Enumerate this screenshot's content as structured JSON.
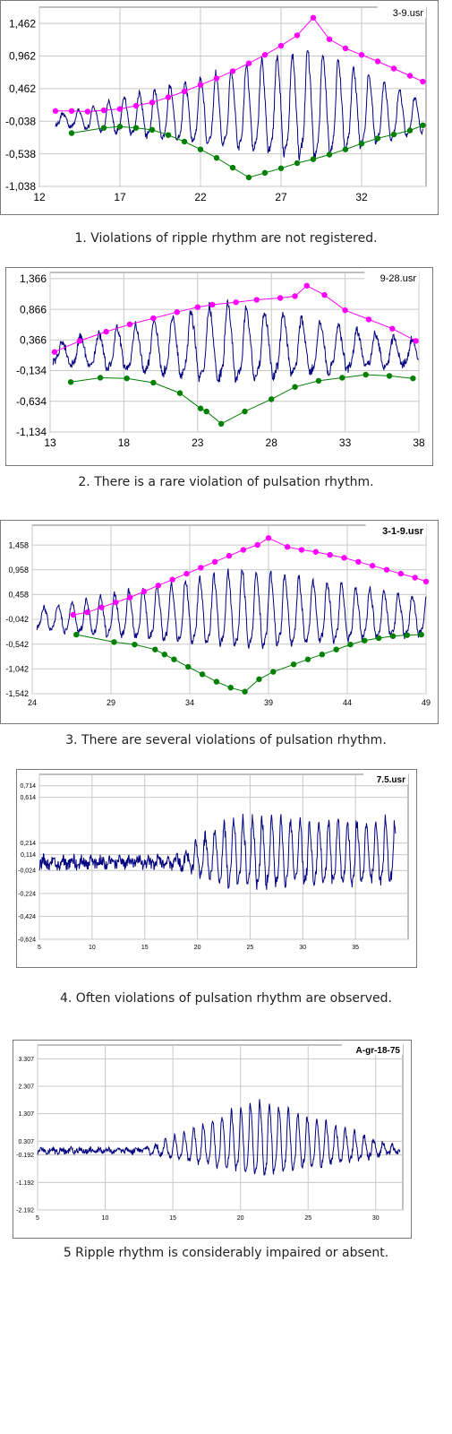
{
  "captions": [
    "1. Violations of ripple rhythm are not registered.",
    "2. There is a rare violation of pulsation rhythm.",
    "3. There are several violations of pulsation rhythm.",
    "4. Often violations of pulsation rhythm are observed.",
    "5 Ripple rhythm is considerably impaired or absent."
  ],
  "chart_data": [
    {
      "type": "line",
      "tag": "3-9.usr",
      "x_ticks": [
        "12",
        "17",
        "22",
        "27",
        "32"
      ],
      "y_ticks": [
        "1,462",
        "0,962",
        "0,462",
        "-0,038",
        "-0,538",
        "-1,038"
      ],
      "xlim": [
        12,
        36
      ],
      "ylim": [
        -1.038,
        1.712
      ],
      "grid": true,
      "signal": {
        "x_start": 13,
        "x_end": 35.8,
        "period": 0.95,
        "amp_start": 0.15,
        "amp_peak": 1.6,
        "amp_end": 0.45,
        "peak_x": 29,
        "noise": 0.03,
        "baseline": -0.05
      },
      "series": [
        {
          "color": "#ff00ff",
          "x": [
            13,
            14,
            15,
            16,
            17,
            18,
            19,
            20,
            21,
            22,
            23,
            24,
            25,
            26,
            27,
            28,
            29,
            30,
            31,
            32,
            33,
            34,
            35,
            35.8
          ],
          "y": [
            0.12,
            0.12,
            0.11,
            0.13,
            0.15,
            0.2,
            0.25,
            0.33,
            0.42,
            0.52,
            0.62,
            0.73,
            0.85,
            0.98,
            1.12,
            1.28,
            1.55,
            1.22,
            1.08,
            0.98,
            0.88,
            0.77,
            0.66,
            0.57
          ]
        },
        {
          "color": "#008000",
          "x": [
            14,
            16,
            17,
            18,
            19,
            20,
            21,
            22,
            23,
            24,
            25,
            26,
            27,
            28,
            29,
            30,
            31,
            32,
            33,
            34,
            35,
            35.8
          ],
          "y": [
            -0.22,
            -0.14,
            -0.12,
            -0.14,
            -0.17,
            -0.25,
            -0.35,
            -0.47,
            -0.6,
            -0.75,
            -0.9,
            -0.83,
            -0.76,
            -0.68,
            -0.62,
            -0.55,
            -0.47,
            -0.38,
            -0.3,
            -0.24,
            -0.18,
            -0.1
          ]
        }
      ]
    },
    {
      "type": "line",
      "tag": "9-28.usr",
      "x_ticks": [
        "13",
        "18",
        "23",
        "28",
        "33",
        "38"
      ],
      "y_ticks": [
        "1,366",
        "0,866",
        "0,366",
        "-0,134",
        "-0,634",
        "-1,134"
      ],
      "xlim": [
        13,
        38
      ],
      "ylim": [
        -1.134,
        1.466
      ],
      "grid": true,
      "signal": {
        "x_start": 13.2,
        "x_end": 38,
        "period": 1.25,
        "amp_start": 0.3,
        "amp_peak": 1.2,
        "amp_end": 0.35,
        "peak_x": 25,
        "noise": 0.06,
        "baseline": 0.1
      },
      "series": [
        {
          "color": "#ff00ff",
          "x": [
            13.3,
            15,
            16.8,
            18.4,
            20,
            21.6,
            23,
            24,
            25.6,
            27,
            28.6,
            29.6,
            30.4,
            31.6,
            33,
            34.6,
            36.2,
            37.8
          ],
          "y": [
            0.17,
            0.35,
            0.5,
            0.62,
            0.72,
            0.82,
            0.9,
            0.94,
            0.98,
            1.02,
            1.05,
            1.08,
            1.25,
            1.1,
            0.85,
            0.7,
            0.55,
            0.35
          ]
        },
        {
          "color": "#008000",
          "x": [
            14.4,
            16.4,
            18.2,
            20,
            21.8,
            23.2,
            23.6,
            24.6,
            26.2,
            28,
            29.6,
            31.2,
            32.8,
            34.4,
            36,
            37.6
          ],
          "y": [
            -0.32,
            -0.25,
            -0.26,
            -0.33,
            -0.5,
            -0.75,
            -0.8,
            -1.0,
            -0.8,
            -0.6,
            -0.4,
            -0.3,
            -0.25,
            -0.2,
            -0.22,
            -0.26
          ]
        }
      ]
    },
    {
      "type": "line",
      "tag": "3-1-9.usr",
      "x_ticks": [
        "24",
        "29",
        "34",
        "39",
        "44",
        "49"
      ],
      "y_ticks": [
        "1,458",
        "0,958",
        "0,458",
        "-0,042",
        "-0,542",
        "-1,042",
        "-1,542"
      ],
      "xlim": [
        24,
        49
      ],
      "ylim": [
        -1.542,
        1.858
      ],
      "grid": true,
      "signal": {
        "x_start": 24.3,
        "x_end": 49,
        "period": 0.9,
        "amp_start": 0.4,
        "amp_peak": 1.5,
        "amp_end": 0.7,
        "peak_x": 37.5,
        "noise": 0.05,
        "baseline": -0.1
      },
      "series": [
        {
          "color": "#ff00ff",
          "x": [
            26.6,
            27.5,
            28.4,
            29.3,
            30.2,
            31.1,
            32,
            32.9,
            33.8,
            34.7,
            35.6,
            36.5,
            37.4,
            38.3,
            39,
            40.2,
            41.1,
            42,
            42.9,
            43.8,
            44.7,
            45.6,
            46.5,
            47.4,
            48.3,
            49
          ],
          "y": [
            0.05,
            0.1,
            0.2,
            0.3,
            0.4,
            0.52,
            0.64,
            0.76,
            0.88,
            1.0,
            1.12,
            1.24,
            1.36,
            1.46,
            1.6,
            1.42,
            1.36,
            1.32,
            1.26,
            1.2,
            1.12,
            1.04,
            0.96,
            0.88,
            0.8,
            0.72
          ]
        },
        {
          "color": "#008000",
          "x": [
            26.8,
            29.2,
            30.5,
            31.8,
            32.4,
            33,
            33.9,
            34.8,
            35.7,
            36.6,
            37.5,
            38.4,
            39.3,
            40.6,
            41.5,
            42.4,
            43.3,
            44.2,
            45.1,
            46,
            46.9,
            47.8,
            48.7
          ],
          "y": [
            -0.35,
            -0.5,
            -0.55,
            -0.65,
            -0.75,
            -0.85,
            -1.0,
            -1.15,
            -1.3,
            -1.42,
            -1.5,
            -1.25,
            -1.1,
            -0.95,
            -0.85,
            -0.75,
            -0.65,
            -0.55,
            -0.47,
            -0.42,
            -0.38,
            -0.36,
            -0.35
          ]
        }
      ]
    },
    {
      "type": "line",
      "tag": "7.5.usr",
      "x_ticks": [
        "5",
        "10",
        "15",
        "20",
        "25",
        "30",
        "35"
      ],
      "y_ticks": [
        "0,714",
        "0,614",
        "0,214",
        "0,114",
        "-0,024",
        "-0,224",
        "-0,424",
        "-0,624"
      ],
      "xlim": [
        5,
        40
      ],
      "ylim": [
        -0.624,
        0.814
      ],
      "grid": true,
      "signal": {
        "x_start": 5,
        "x_end": 38.8,
        "period": 0.9,
        "amp_start": 0.05,
        "amp_peak": 0.55,
        "amp_end": 0.5,
        "peak_x": 23,
        "noise": 0.05,
        "baseline": 0.04,
        "onset": 18
      }
    },
    {
      "type": "line",
      "tag": "A-gr-18-75",
      "x_ticks": [
        "5",
        "10",
        "15",
        "20",
        "25",
        "30"
      ],
      "y_ticks": [
        "3.307",
        "2.307",
        "1.307",
        "0.307",
        "-0.192",
        "-1.192",
        "-2.192"
      ],
      "xlim": [
        5,
        32
      ],
      "ylim": [
        -2.192,
        3.807
      ],
      "grid": true,
      "signal": {
        "x_start": 5,
        "x_end": 31.8,
        "period": 0.7,
        "amp_start": 0.12,
        "amp_peak": 2.6,
        "amp_end": 0.15,
        "peak_x": 21.5,
        "noise": 0.1,
        "baseline": -0.05,
        "onset": 13
      }
    }
  ]
}
